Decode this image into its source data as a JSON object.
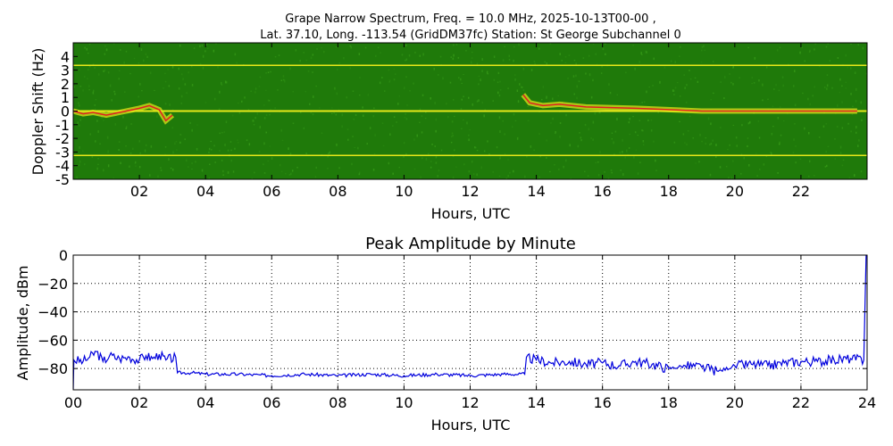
{
  "figure": {
    "title_line1": "Grape Narrow Spectrum, Freq. = 10.0 MHz, 2025-10-13T00-00 ,",
    "title_line2": "Lat.  37.10, Long. -113.54 (GridDM37fc) Station: St George Subchannel 0"
  },
  "chart_data": [
    {
      "type": "heatmap",
      "title": "",
      "xlabel": "Hours, UTC",
      "ylabel": "Doppler Shift (Hz)",
      "xlim": [
        0,
        24
      ],
      "ylim": [
        -5,
        5
      ],
      "x_tick_labels": [
        "02",
        "04",
        "06",
        "08",
        "10",
        "12",
        "14",
        "16",
        "18",
        "20",
        "22"
      ],
      "x_tick_values": [
        2,
        4,
        6,
        8,
        10,
        12,
        14,
        16,
        18,
        20,
        22
      ],
      "y_tick_labels": [
        "4",
        "3",
        "2",
        "1",
        "0",
        "-1",
        "-2",
        "-3",
        "-4",
        "-5"
      ],
      "y_tick_values": [
        4,
        3,
        2,
        1,
        0,
        -1,
        -2,
        -3,
        -4,
        -5
      ],
      "colors": {
        "background": "#1f7a0a",
        "noise_light": "#3aa01a",
        "signal": "#e8e81a",
        "peak": "#e02020"
      },
      "steady_lines_hz": [
        3.35,
        0,
        -3.25
      ],
      "doppler_trace": [
        {
          "x": 0.0,
          "y": 0.0
        },
        {
          "x": 0.3,
          "y": -0.2
        },
        {
          "x": 0.6,
          "y": -0.1
        },
        {
          "x": 1.0,
          "y": -0.3
        },
        {
          "x": 1.4,
          "y": -0.1
        },
        {
          "x": 1.8,
          "y": 0.1
        },
        {
          "x": 2.0,
          "y": 0.2
        },
        {
          "x": 2.3,
          "y": 0.4
        },
        {
          "x": 2.6,
          "y": 0.1
        },
        {
          "x": 2.8,
          "y": -0.7
        },
        {
          "x": 3.0,
          "y": -0.3
        },
        {
          "x": 13.6,
          "y": 1.2
        },
        {
          "x": 13.8,
          "y": 0.6
        },
        {
          "x": 14.2,
          "y": 0.4
        },
        {
          "x": 14.7,
          "y": 0.5
        },
        {
          "x": 15.5,
          "y": 0.3
        },
        {
          "x": 17.0,
          "y": 0.2
        },
        {
          "x": 19.0,
          "y": 0.0
        },
        {
          "x": 21.0,
          "y": 0.0
        },
        {
          "x": 23.7,
          "y": 0.0
        }
      ]
    },
    {
      "type": "line",
      "title": "Peak Amplitude by Minute",
      "xlabel": "Hours, UTC",
      "ylabel": "Amplitude, dBm",
      "xlim": [
        0,
        24
      ],
      "ylim": [
        -95,
        0
      ],
      "grid": true,
      "x_tick_labels": [
        "00",
        "02",
        "04",
        "06",
        "08",
        "10",
        "12",
        "14",
        "16",
        "18",
        "20",
        "22",
        "24"
      ],
      "x_tick_values": [
        0,
        2,
        4,
        6,
        8,
        10,
        12,
        14,
        16,
        18,
        20,
        22,
        24
      ],
      "y_tick_labels": [
        "0",
        "−20",
        "−40",
        "−60",
        "−80"
      ],
      "y_tick_values": [
        0,
        -20,
        -40,
        -60,
        -80
      ],
      "line_color": "#0000dd",
      "series": [
        {
          "points": [
            {
              "x": 0.0,
              "y": -95
            },
            {
              "x": 0.02,
              "y": -74
            },
            {
              "x": 0.3,
              "y": -75
            },
            {
              "x": 0.5,
              "y": -72
            },
            {
              "x": 0.7,
              "y": -68
            },
            {
              "x": 0.9,
              "y": -75
            },
            {
              "x": 1.1,
              "y": -71
            },
            {
              "x": 1.4,
              "y": -73
            },
            {
              "x": 1.7,
              "y": -72
            },
            {
              "x": 2.0,
              "y": -74
            },
            {
              "x": 2.2,
              "y": -71
            },
            {
              "x": 2.4,
              "y": -73
            },
            {
              "x": 2.6,
              "y": -70
            },
            {
              "x": 2.8,
              "y": -74
            },
            {
              "x": 3.1,
              "y": -72
            },
            {
              "x": 3.15,
              "y": -83
            },
            {
              "x": 3.6,
              "y": -83
            },
            {
              "x": 4.0,
              "y": -84
            },
            {
              "x": 5.0,
              "y": -84
            },
            {
              "x": 6.0,
              "y": -85
            },
            {
              "x": 7.0,
              "y": -84
            },
            {
              "x": 8.0,
              "y": -85
            },
            {
              "x": 9.0,
              "y": -84
            },
            {
              "x": 10.0,
              "y": -85
            },
            {
              "x": 11.0,
              "y": -84
            },
            {
              "x": 12.0,
              "y": -85
            },
            {
              "x": 13.0,
              "y": -84
            },
            {
              "x": 13.65,
              "y": -84
            },
            {
              "x": 13.7,
              "y": -72
            },
            {
              "x": 14.0,
              "y": -74
            },
            {
              "x": 14.5,
              "y": -76
            },
            {
              "x": 15.0,
              "y": -75
            },
            {
              "x": 15.5,
              "y": -77
            },
            {
              "x": 16.0,
              "y": -76
            },
            {
              "x": 16.5,
              "y": -78
            },
            {
              "x": 17.0,
              "y": -75
            },
            {
              "x": 17.5,
              "y": -77
            },
            {
              "x": 18.0,
              "y": -80
            },
            {
              "x": 18.5,
              "y": -78
            },
            {
              "x": 19.0,
              "y": -79
            },
            {
              "x": 19.5,
              "y": -82
            },
            {
              "x": 20.0,
              "y": -78
            },
            {
              "x": 20.5,
              "y": -77
            },
            {
              "x": 21.0,
              "y": -78
            },
            {
              "x": 21.5,
              "y": -76
            },
            {
              "x": 22.0,
              "y": -75
            },
            {
              "x": 22.5,
              "y": -75
            },
            {
              "x": 23.0,
              "y": -74
            },
            {
              "x": 23.5,
              "y": -73
            },
            {
              "x": 23.9,
              "y": -74
            },
            {
              "x": 23.97,
              "y": 0
            }
          ]
        }
      ]
    }
  ]
}
